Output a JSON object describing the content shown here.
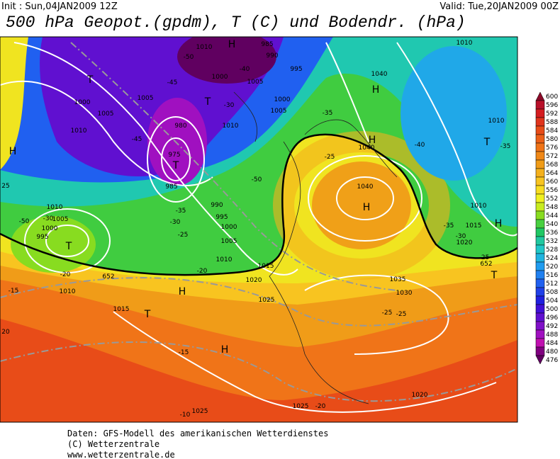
{
  "header": {
    "init": "Init : Sun,04JAN2009 12Z",
    "valid": "Valid: Tue,20JAN2009 00Z",
    "title": "500 hPa Geopot.(gpdm), T (C) und Bodendr. (hPa)"
  },
  "map": {
    "labels": [
      "1010",
      "985",
      "H",
      "990",
      "-50",
      "-40",
      "995",
      "1040",
      "H",
      "T",
      "1005",
      "1000",
      "1005",
      "-45",
      "1000",
      "1005",
      "-30",
      "T",
      "1000",
      "1005",
      "-35",
      "1010",
      "980",
      "1010",
      "H",
      "1040",
      "-40",
      "1010",
      "T",
      "-35",
      "H",
      "-45",
      "975",
      "T",
      "-50",
      "-25",
      "985",
      "1040",
      "H",
      "990",
      "-35",
      "1010",
      "1005",
      "1000",
      "-30",
      "-50",
      "T",
      "995",
      "-30",
      "995",
      "-25",
      "1000",
      "1005",
      "1010",
      "1015",
      "652",
      "652",
      "-20",
      "-20",
      "1020",
      "1010",
      "-15",
      "H",
      "1025",
      "1035",
      "1030",
      "-25",
      "-25",
      "1015",
      "T",
      "H",
      "-15",
      "20",
      "1020",
      "1025",
      "-20",
      "1025",
      "-10",
      "1015",
      "1020",
      "-25",
      "-30",
      "-35",
      "1010",
      "H",
      "T",
      "25",
      "1010"
    ]
  },
  "colorbar": {
    "labels": [
      600,
      596,
      592,
      588,
      584,
      580,
      576,
      572,
      568,
      564,
      560,
      556,
      552,
      548,
      544,
      540,
      536,
      532,
      528,
      524,
      520,
      516,
      512,
      508,
      504,
      500,
      496,
      492,
      488,
      484,
      480,
      476
    ],
    "colors": [
      "#8c0a28",
      "#b8102a",
      "#d41c20",
      "#e0341c",
      "#e84c18",
      "#ec6018",
      "#f07418",
      "#f08818",
      "#f09c18",
      "#f4b01c",
      "#f8c420",
      "#f8dc20",
      "#f0f020",
      "#c8ec20",
      "#88dc20",
      "#48d040",
      "#20c864",
      "#20c8a0",
      "#20c8c8",
      "#20b4e0",
      "#209cf0",
      "#2080f0",
      "#2060f0",
      "#2040e8",
      "#2020e0",
      "#4010d8",
      "#6010d0",
      "#8010c8",
      "#a010c0",
      "#c010b0",
      "#800080",
      "#600060"
    ]
  },
  "footer": [
    "Daten: GFS-Modell des amerikanischen Wetterdienstes",
    "(C) Wetterzentrale",
    "www.wetterzentrale.de"
  ]
}
